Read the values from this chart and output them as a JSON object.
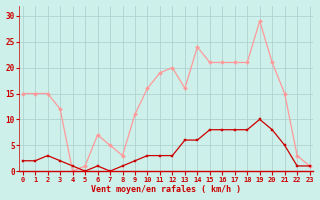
{
  "x": [
    0,
    1,
    2,
    3,
    4,
    5,
    6,
    7,
    8,
    9,
    10,
    11,
    12,
    13,
    14,
    15,
    16,
    17,
    18,
    19,
    20,
    21,
    22,
    23
  ],
  "wind_mean": [
    2,
    2,
    3,
    2,
    1,
    0,
    1,
    0,
    1,
    2,
    3,
    3,
    3,
    6,
    6,
    8,
    8,
    8,
    8,
    10,
    8,
    5,
    1,
    1
  ],
  "wind_gust": [
    15,
    15,
    15,
    12,
    0,
    1,
    7,
    5,
    3,
    11,
    16,
    19,
    20,
    16,
    24,
    21,
    21,
    21,
    21,
    29,
    21,
    15,
    3,
    1
  ],
  "background_color": "#cdf0ea",
  "grid_color": "#aacccc",
  "mean_color": "#cc0000",
  "gust_color": "#ff9999",
  "xlabel": "Vent moyen/en rafales ( km/h )",
  "xlabel_color": "#cc0000",
  "tick_color": "#cc0000",
  "ylim": [
    0,
    32
  ],
  "yticks": [
    0,
    5,
    10,
    15,
    20,
    25,
    30
  ],
  "spine_color": "#cc0000"
}
